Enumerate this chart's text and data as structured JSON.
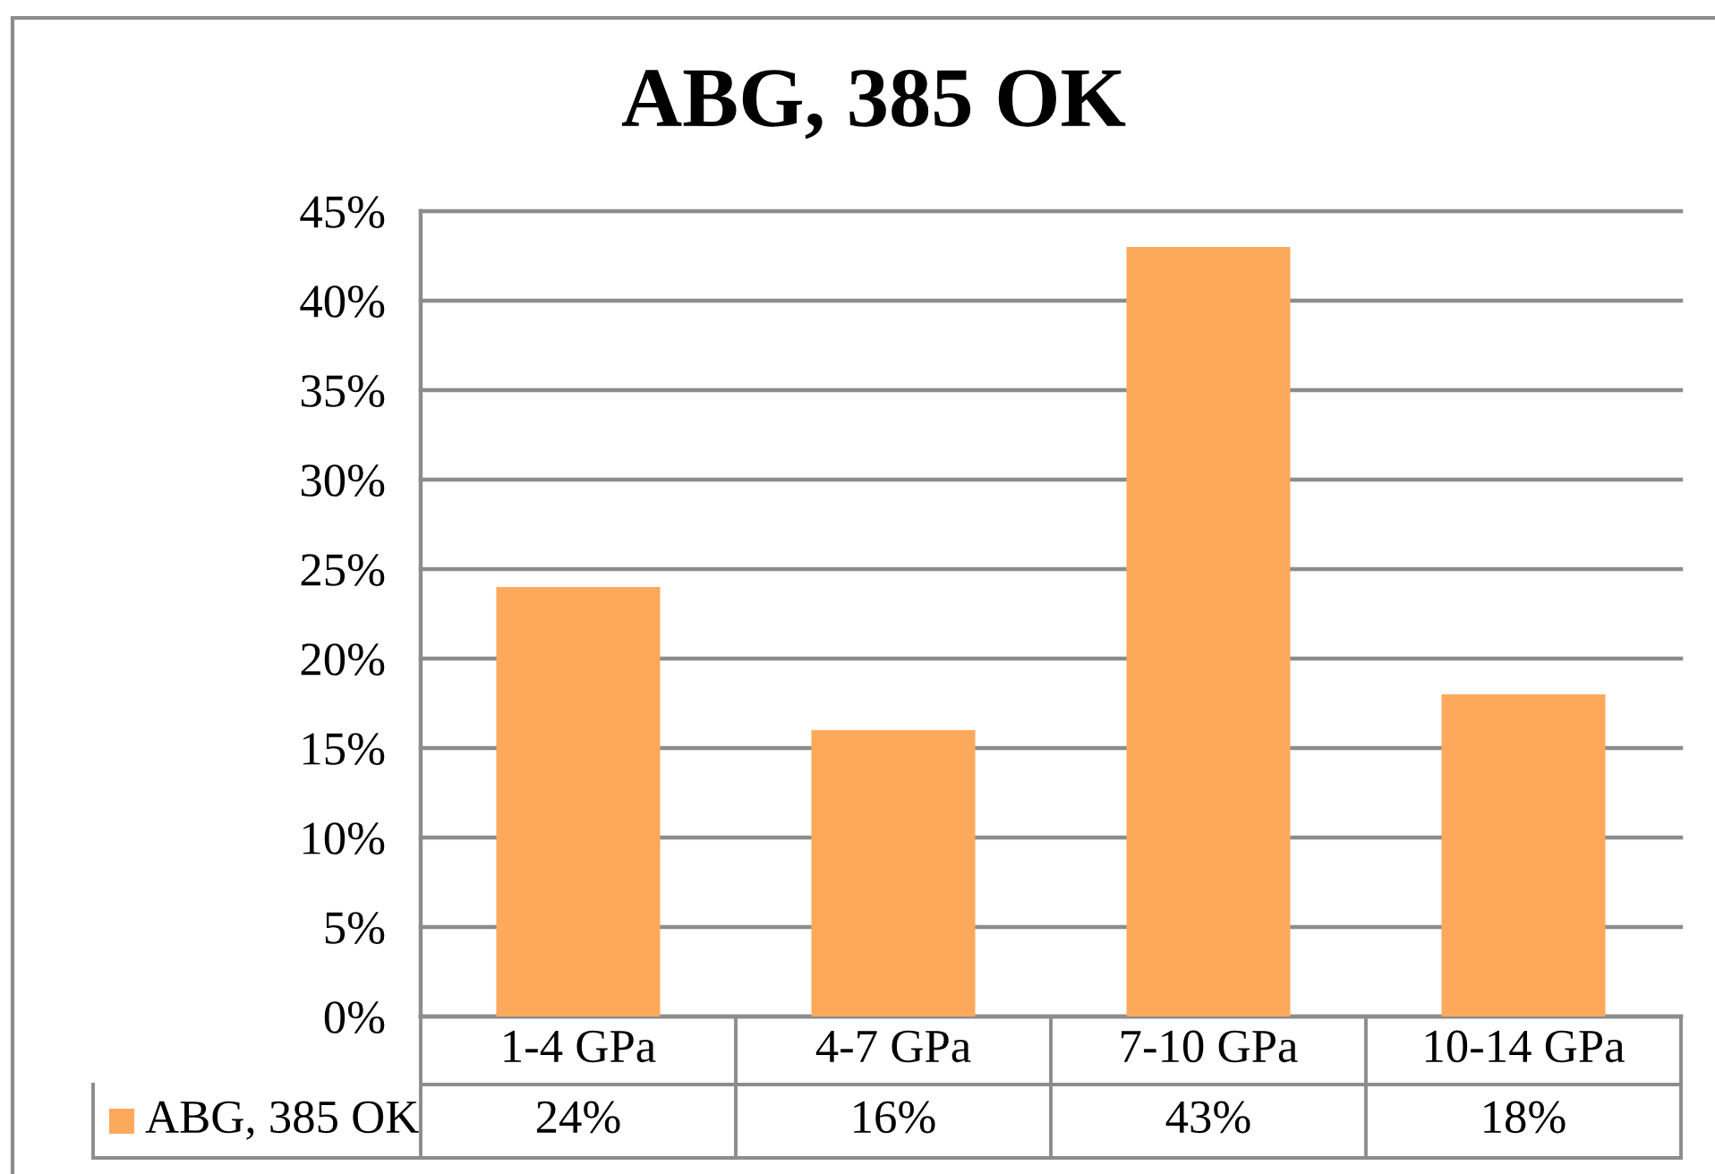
{
  "chart_data": {
    "type": "bar",
    "title": "ABG, 385 OK",
    "categories": [
      "1-4 GPa",
      "4-7 GPa",
      "7-10 GPa",
      "10-14 GPa"
    ],
    "series": [
      {
        "name": "ABG, 385 OK",
        "color": "#fda95c",
        "values": [
          24,
          16,
          43,
          18
        ],
        "value_labels": [
          "24%",
          "16%",
          "43%",
          "18%"
        ]
      }
    ],
    "ylim": [
      0,
      45
    ],
    "yticks": [
      {
        "value": 0,
        "label": "0%"
      },
      {
        "value": 5,
        "label": "5%"
      },
      {
        "value": 10,
        "label": "10%"
      },
      {
        "value": 15,
        "label": "15%"
      },
      {
        "value": 20,
        "label": "20%"
      },
      {
        "value": 25,
        "label": "25%"
      },
      {
        "value": 30,
        "label": "30%"
      },
      {
        "value": 35,
        "label": "35%"
      },
      {
        "value": 40,
        "label": "40%"
      },
      {
        "value": 45,
        "label": "45%"
      }
    ],
    "grid": "y"
  }
}
